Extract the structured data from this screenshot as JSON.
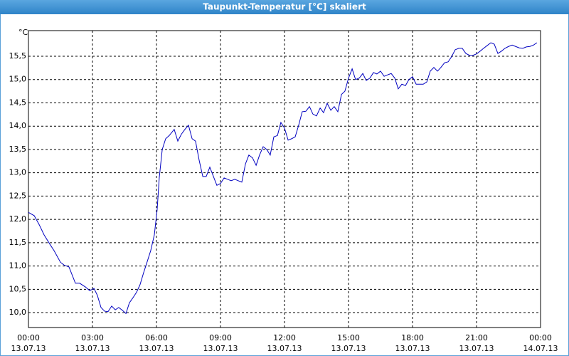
{
  "chart_data": {
    "type": "line",
    "title": "Taupunkt-Temperatur [°C] skaliert",
    "y_unit": "°C",
    "xlim": [
      0,
      24
    ],
    "ylim": [
      9.68,
      16.05
    ],
    "grid": true,
    "xticks": [
      {
        "value": 0,
        "label": "00:00",
        "date": "13.07.13"
      },
      {
        "value": 3,
        "label": "03:00",
        "date": "13.07.13"
      },
      {
        "value": 6,
        "label": "06:00",
        "date": "13.07.13"
      },
      {
        "value": 9,
        "label": "09:00",
        "date": "13.07.13"
      },
      {
        "value": 12,
        "label": "12:00",
        "date": "13.07.13"
      },
      {
        "value": 15,
        "label": "15:00",
        "date": "13.07.13"
      },
      {
        "value": 18,
        "label": "18:00",
        "date": "13.07.13"
      },
      {
        "value": 21,
        "label": "21:00",
        "date": "13.07.13"
      },
      {
        "value": 24,
        "label": "00:00",
        "date": "14.07.13"
      }
    ],
    "yticks": [
      {
        "value": 10,
        "label": "10,0"
      },
      {
        "value": 10.5,
        "label": "10,5"
      },
      {
        "value": 11,
        "label": "11,0"
      },
      {
        "value": 11.5,
        "label": "11,5"
      },
      {
        "value": 12,
        "label": "12,0"
      },
      {
        "value": 12.5,
        "label": "12,5"
      },
      {
        "value": 13,
        "label": "13,0"
      },
      {
        "value": 13.5,
        "label": "13,5"
      },
      {
        "value": 14,
        "label": "14,0"
      },
      {
        "value": 14.5,
        "label": "14,5"
      },
      {
        "value": 15,
        "label": "15,0"
      },
      {
        "value": 15.5,
        "label": "15,5"
      }
    ],
    "series": [
      {
        "name": "Taupunkt-Temperatur",
        "color": "#0000c0",
        "x": [
          0,
          0.27,
          0.5,
          0.73,
          1,
          1.2,
          1.5,
          1.67,
          1.9,
          2.2,
          2.4,
          2.67,
          2.87,
          3.07,
          3.23,
          3.4,
          3.57,
          3.73,
          3.9,
          4.07,
          4.23,
          4.4,
          4.57,
          4.73,
          4.9,
          5.07,
          5.23,
          5.4,
          5.57,
          5.73,
          5.9,
          6.03,
          6.13,
          6.27,
          6.43,
          6.6,
          6.83,
          7,
          7.17,
          7.33,
          7.5,
          7.67,
          7.83,
          8,
          8.17,
          8.33,
          8.5,
          8.67,
          8.83,
          9,
          9.17,
          9.33,
          9.5,
          9.67,
          9.83,
          10,
          10.17,
          10.33,
          10.5,
          10.67,
          10.83,
          11,
          11.17,
          11.33,
          11.5,
          11.67,
          11.83,
          12,
          12.17,
          12.33,
          12.5,
          12.67,
          12.83,
          13,
          13.17,
          13.33,
          13.5,
          13.67,
          13.83,
          14,
          14.17,
          14.33,
          14.5,
          14.67,
          14.83,
          15,
          15.17,
          15.33,
          15.5,
          15.67,
          15.83,
          16,
          16.17,
          16.33,
          16.5,
          16.67,
          16.83,
          17,
          17.17,
          17.33,
          17.5,
          17.67,
          17.83,
          18,
          18.17,
          18.33,
          18.5,
          18.67,
          18.83,
          19,
          19.17,
          19.33,
          19.5,
          19.67,
          19.83,
          20,
          20.17,
          20.33,
          20.5,
          20.67,
          20.83,
          21,
          21.17,
          21.33,
          21.5,
          21.67,
          21.83,
          22,
          22.17,
          22.33,
          22.5,
          22.67,
          22.83,
          23,
          23.17,
          23.33,
          23.5,
          23.67,
          23.83
        ],
        "values": [
          12.15,
          12.08,
          11.89,
          11.67,
          11.47,
          11.33,
          11.08,
          11.02,
          10.98,
          10.63,
          10.63,
          10.55,
          10.47,
          10.52,
          10.37,
          10.11,
          10.03,
          10.02,
          10.14,
          10.06,
          10.11,
          10.05,
          9.98,
          10.21,
          10.32,
          10.44,
          10.6,
          10.86,
          11.1,
          11.33,
          11.67,
          12.2,
          12.89,
          13.5,
          13.73,
          13.8,
          13.93,
          13.68,
          13.83,
          13.93,
          14.02,
          13.73,
          13.68,
          13.27,
          12.92,
          12.92,
          13.12,
          12.92,
          12.73,
          12.77,
          12.89,
          12.86,
          12.83,
          12.86,
          12.83,
          12.8,
          13.19,
          13.38,
          13.32,
          13.16,
          13.38,
          13.56,
          13.5,
          13.38,
          13.77,
          13.8,
          14.08,
          13.96,
          13.7,
          13.73,
          13.77,
          14.03,
          14.31,
          14.32,
          14.42,
          14.26,
          14.22,
          14.39,
          14.29,
          14.49,
          14.34,
          14.42,
          14.31,
          14.68,
          14.75,
          15.03,
          15.23,
          15.0,
          15.03,
          15.13,
          14.98,
          15.03,
          15.15,
          15.12,
          15.18,
          15.07,
          15.1,
          15.13,
          15.03,
          14.8,
          14.9,
          14.87,
          15.0,
          15.06,
          14.9,
          14.9,
          14.9,
          14.95,
          15.18,
          15.26,
          15.18,
          15.26,
          15.36,
          15.38,
          15.49,
          15.64,
          15.67,
          15.67,
          15.56,
          15.52,
          15.52,
          15.55,
          15.61,
          15.67,
          15.73,
          15.79,
          15.76,
          15.56,
          15.61,
          15.67,
          15.71,
          15.74,
          15.71,
          15.68,
          15.67,
          15.7,
          15.71,
          15.74,
          15.79
        ]
      }
    ]
  }
}
